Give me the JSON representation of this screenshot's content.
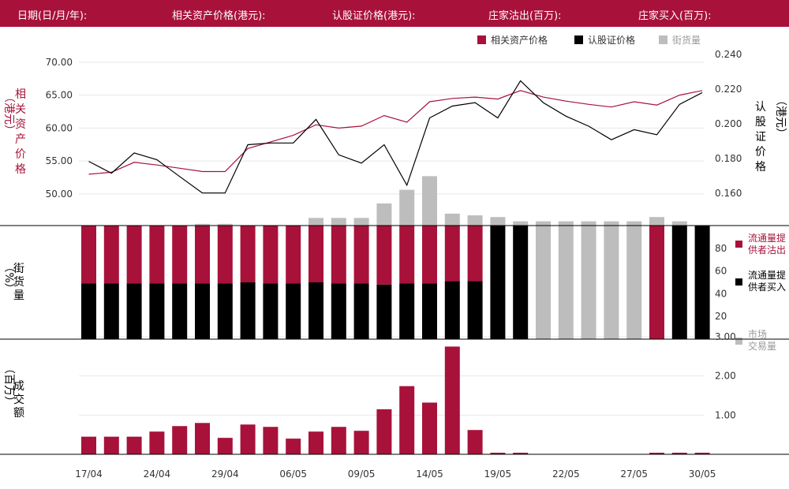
{
  "header": {
    "date_label": "日期(日/月/年):",
    "underlying_label": "相关资产价格(港元):",
    "warrant_label": "认股证价格(港元):",
    "issuer_sell_label": "庄家沽出(百万):",
    "issuer_buy_label": "庄家买入(百万):"
  },
  "legend_top": {
    "underlying": "相关资产价格",
    "warrant": "认股证价格",
    "street": "街货量"
  },
  "axis_titles": {
    "left_top": "相关资产价格",
    "left_top_unit": "（港元）",
    "right_top": "认股证价格",
    "right_top_unit": "（港元）",
    "left_mid": "街货量",
    "left_mid_unit": "（%）",
    "left_bottom": "成交额",
    "left_bottom_unit": "（百万）"
  },
  "legend_mid": {
    "sell_line1": "流通量提",
    "sell_line2": "供者沽出",
    "buy_line1": "流通量提",
    "buy_line2": "供者买入",
    "market_line1": "市场",
    "market_line2": "交易量"
  },
  "colors": {
    "brand": "#a8123a",
    "black": "#000000",
    "grey": "#bdbdbd"
  },
  "chart_data": [
    {
      "type": "line",
      "name": "price",
      "left_ticks": [
        "70.00",
        "65.00",
        "60.00",
        "55.00",
        "50.00"
      ],
      "right_ticks": [
        "0.240",
        "0.220",
        "0.200",
        "0.180",
        "0.160"
      ],
      "left_ylim": [
        45.2,
        72.5
      ],
      "right_ylim": [
        0.1414,
        0.2451
      ],
      "series": [
        {
          "name": "相关资产价格",
          "axis": "left",
          "values": [
            53.0,
            53.3,
            54.8,
            54.4,
            53.9,
            53.4,
            53.4,
            56.9,
            57.9,
            58.9,
            60.5,
            60.0,
            60.3,
            61.9,
            60.9,
            64.0,
            64.5,
            64.7,
            64.4,
            65.7,
            64.7,
            64.1,
            63.6,
            63.2,
            64.0,
            63.5,
            65.0,
            65.7
          ]
        },
        {
          "name": "认股证价格",
          "axis": "right",
          "values": [
            0.1784,
            0.1716,
            0.1833,
            0.1794,
            0.1697,
            0.1602,
            0.1602,
            0.188,
            0.189,
            0.189,
            0.2026,
            0.1822,
            0.1774,
            0.188,
            0.1647,
            0.2035,
            0.2103,
            0.2123,
            0.2035,
            0.2249,
            0.2123,
            0.2045,
            0.1987,
            0.1909,
            0.1967,
            0.1938,
            0.2113,
            0.2181
          ]
        }
      ]
    },
    {
      "type": "bar",
      "name": "street",
      "ylim": [
        0,
        100
      ],
      "ticks": [
        "80",
        "60",
        "40",
        "20"
      ],
      "above_axis": [
        0,
        0,
        0,
        0,
        0,
        2,
        2,
        0,
        0,
        0,
        9,
        9,
        9,
        26,
        42,
        58,
        14,
        12,
        10,
        5,
        5,
        5,
        5,
        5,
        5,
        10,
        5,
        0
      ],
      "stack_black": [
        49,
        49,
        49,
        49,
        49,
        49,
        49,
        50,
        49,
        49,
        50,
        49,
        49,
        48,
        49,
        49,
        51,
        51,
        100,
        100,
        0,
        0,
        0,
        0,
        0,
        0,
        100,
        100
      ],
      "stack_red": [
        51,
        51,
        51,
        51,
        51,
        51,
        51,
        50,
        51,
        51,
        50,
        51,
        51,
        52,
        51,
        51,
        49,
        49,
        0,
        0,
        0,
        0,
        0,
        0,
        0,
        100,
        0,
        0
      ],
      "grey_full": [
        0,
        0,
        0,
        0,
        0,
        0,
        0,
        0,
        0,
        0,
        0,
        0,
        0,
        0,
        0,
        0,
        0,
        0,
        0,
        0,
        1,
        1,
        1,
        1,
        1,
        0,
        0,
        0
      ]
    },
    {
      "type": "bar",
      "name": "turnover",
      "ylim": [
        0,
        3.0
      ],
      "ticks": [
        "3.00",
        "2.00",
        "1.00"
      ],
      "values": [
        0.45,
        0.45,
        0.45,
        0.58,
        0.72,
        0.8,
        0.42,
        0.76,
        0.7,
        0.4,
        0.58,
        0.7,
        0.6,
        1.15,
        1.74,
        1.32,
        2.75,
        0.62,
        0.04,
        0.04,
        0,
        0,
        0,
        0,
        0,
        0.04,
        0.04,
        0.04
      ]
    }
  ],
  "x_labels": [
    "17/04",
    "24/04",
    "29/04",
    "06/05",
    "09/05",
    "14/05",
    "19/05",
    "22/05",
    "27/05",
    "30/05"
  ]
}
